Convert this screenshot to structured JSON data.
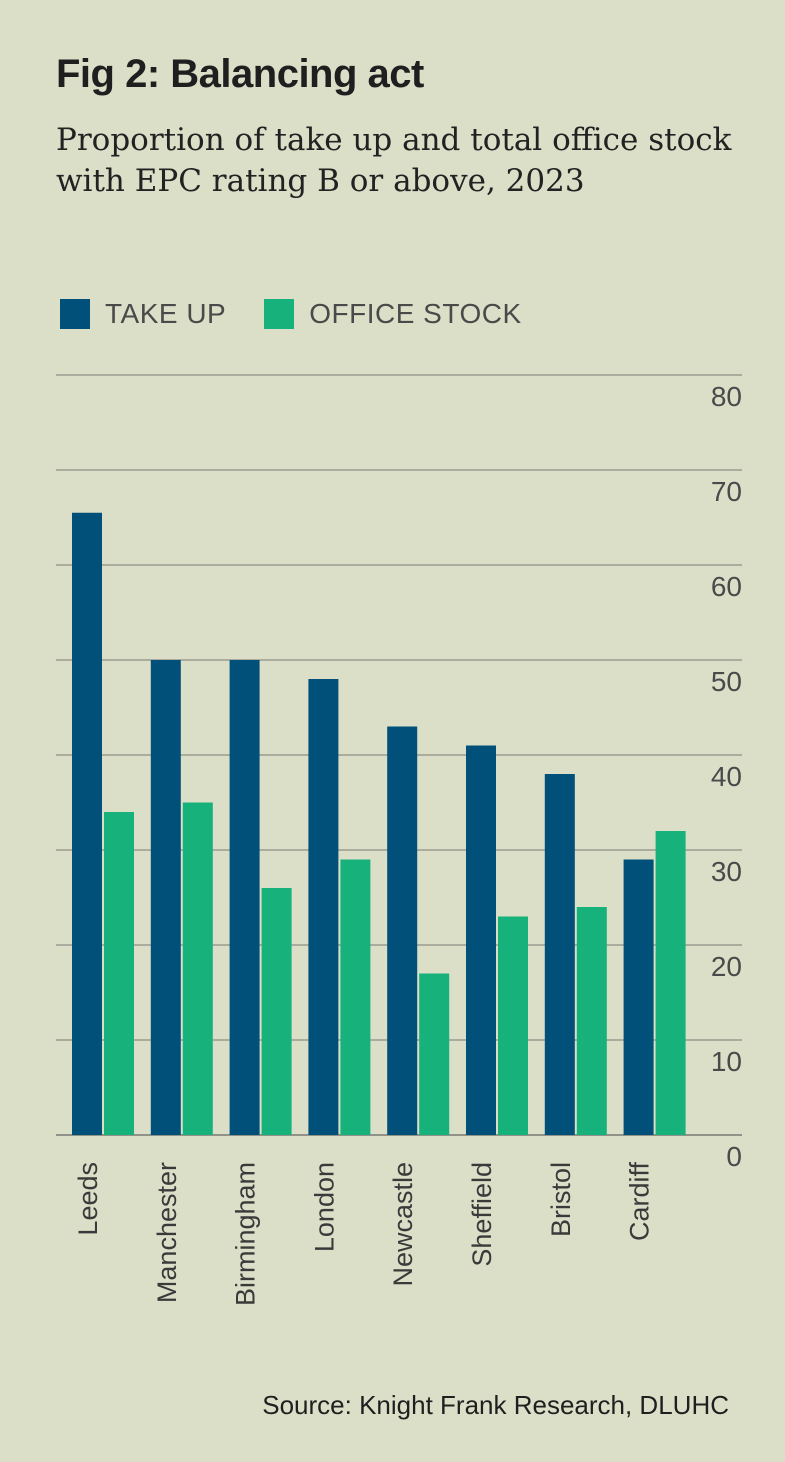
{
  "header": {
    "title": "Fig 2: Balancing act",
    "subtitle": "Proportion of take up and total office stock with EPC rating B or above, 2023"
  },
  "legend": {
    "items": [
      {
        "label": "TAKE UP",
        "color": "#00507a"
      },
      {
        "label": "OFFICE STOCK",
        "color": "#17b27b"
      }
    ]
  },
  "source": "Source: Knight Frank Research, DLUHC",
  "chart_data": {
    "type": "bar",
    "title": "Fig 2: Balancing act",
    "subtitle": "Proportion of take up and total office stock with EPC rating B or above, 2023",
    "categories": [
      "Leeds",
      "Manchester",
      "Birmingham",
      "London",
      "Newcastle",
      "Sheffield",
      "Bristol",
      "Cardiff"
    ],
    "series": [
      {
        "name": "TAKE UP",
        "color": "#00507a",
        "values": [
          65.5,
          50,
          50,
          48,
          43,
          41,
          38,
          29
        ]
      },
      {
        "name": "OFFICE STOCK",
        "color": "#17b27b",
        "values": [
          34,
          35,
          26,
          29,
          17,
          23,
          24,
          32
        ]
      }
    ],
    "ylim": [
      0,
      80
    ],
    "yticks": [
      0,
      10,
      20,
      30,
      40,
      50,
      60,
      70,
      80
    ],
    "grid": true,
    "xlabel": "",
    "ylabel": "",
    "legend_position": "top-left",
    "y_axis_side": "right"
  }
}
